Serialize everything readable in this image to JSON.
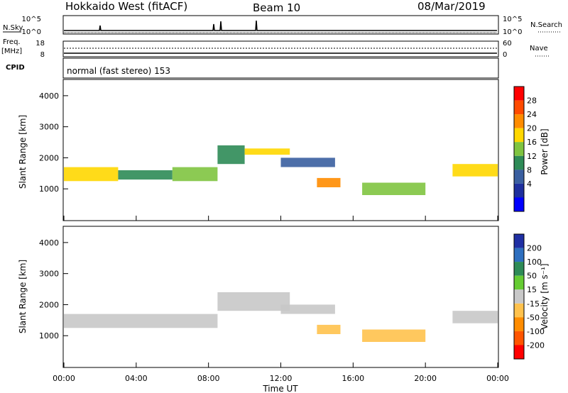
{
  "header": {
    "station": "Hokkaido West (fitACF)",
    "beam": "Beam 10",
    "date": "08/Mar/2019"
  },
  "side_labels": {
    "nsky": "N.Sky",
    "nsearch": "N.Search",
    "freq": "Freq.",
    "freq_unit": "[MHz]",
    "nave": "Nave",
    "cpid": "CPID"
  },
  "mode_text": "normal (fast stereo) 153",
  "axis": {
    "xlabel": "Time UT",
    "ylabel": "Slant Range [km]",
    "xticks": [
      "00:00",
      "04:00",
      "08:00",
      "12:00",
      "16:00",
      "20:00",
      "00:00"
    ],
    "yticks": [
      "1000",
      "2000",
      "3000",
      "4000"
    ],
    "noise_ticks_left": [
      "10^5",
      "10^0"
    ],
    "noise_ticks_right": [
      "10^5",
      "10^0"
    ],
    "freq_ticks": [
      "18",
      "8"
    ],
    "nave_ticks": [
      "60",
      "0"
    ]
  },
  "colorbars": {
    "power": {
      "label": "Power [dB]",
      "ticks": [
        "28",
        "24",
        "20",
        "16",
        "12",
        "8",
        "4"
      ],
      "colors": [
        "#ff0000",
        "#ff4a00",
        "#ff8c00",
        "#ffd700",
        "#7fc440",
        "#2e8b57",
        "#3a5fa0",
        "#1e2f9e",
        "#0000ff"
      ]
    },
    "velocity": {
      "label": "Velocity [m s⁻¹]",
      "ticks": [
        "200",
        "100",
        "50",
        "15",
        "-15",
        "-50",
        "-100",
        "-200"
      ],
      "colors": [
        "#1f2fa3",
        "#2e6fbf",
        "#2e8b57",
        "#66cc33",
        "#c8c8c8",
        "#ffc24d",
        "#ff8c00",
        "#ff5500",
        "#ff0000"
      ]
    }
  },
  "chart_data": [
    {
      "type": "heatmap",
      "name": "Power",
      "x_unit": "hours UT",
      "xlim": [
        0,
        24
      ],
      "ylim": [
        0,
        4500
      ],
      "clim": [
        0,
        32
      ],
      "bands": [
        {
          "t0": 0.0,
          "t1": 3.0,
          "r0": 1250,
          "r1": 1700,
          "v": 20
        },
        {
          "t0": 3.0,
          "t1": 6.0,
          "r0": 1300,
          "r1": 1600,
          "v": 12
        },
        {
          "t0": 6.0,
          "t1": 8.5,
          "r0": 1250,
          "r1": 1700,
          "v": 16
        },
        {
          "t0": 8.5,
          "t1": 10.0,
          "r0": 1800,
          "r1": 2400,
          "v": 14
        },
        {
          "t0": 10.0,
          "t1": 12.5,
          "r0": 2100,
          "r1": 2300,
          "v": 18
        },
        {
          "t0": 12.0,
          "t1": 15.0,
          "r0": 1700,
          "r1": 2000,
          "v": 10
        },
        {
          "t0": 14.0,
          "t1": 15.3,
          "r0": 1050,
          "r1": 1350,
          "v": 24
        },
        {
          "t0": 16.5,
          "t1": 20.0,
          "r0": 800,
          "r1": 1200,
          "v": 16
        },
        {
          "t0": 21.5,
          "t1": 24.0,
          "r0": 1400,
          "r1": 1800,
          "v": 20
        }
      ]
    },
    {
      "type": "heatmap",
      "name": "Velocity",
      "x_unit": "hours UT",
      "xlim": [
        0,
        24
      ],
      "ylim": [
        0,
        4500
      ],
      "clim": [
        -250,
        250
      ],
      "bands": [
        {
          "t0": 0.0,
          "t1": 8.5,
          "r0": 1250,
          "r1": 1700,
          "v": 0
        },
        {
          "t0": 8.5,
          "t1": 12.5,
          "r0": 1800,
          "r1": 2400,
          "v": 0
        },
        {
          "t0": 12.0,
          "t1": 15.0,
          "r0": 1700,
          "r1": 2000,
          "v": 20
        },
        {
          "t0": 14.0,
          "t1": 15.3,
          "r0": 1050,
          "r1": 1350,
          "v": -40
        },
        {
          "t0": 16.5,
          "t1": 20.0,
          "r0": 800,
          "r1": 1200,
          "v": -70
        },
        {
          "t0": 21.5,
          "t1": 24.0,
          "r0": 1400,
          "r1": 1800,
          "v": 0
        }
      ]
    }
  ]
}
